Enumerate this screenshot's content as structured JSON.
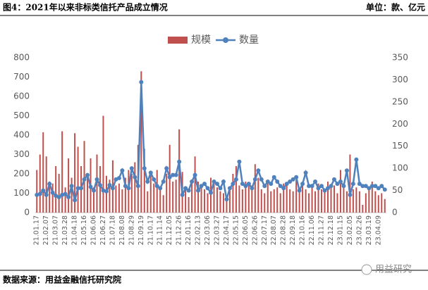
{
  "chart_data": {
    "type": "bar",
    "title": "图4：2021年以来非标类信托产品成立情况",
    "unit": "单位：款、亿元",
    "source": "数据来源：用益金融信托研究院",
    "categories": [
      "21.01.17",
      null,
      null,
      "21.02.07",
      null,
      null,
      "21.03.07",
      null,
      null,
      "21.03.28",
      null,
      null,
      "21.04.18",
      null,
      null,
      "21.05.16",
      null,
      null,
      "21.06.06",
      null,
      null,
      "21.06.27",
      null,
      null,
      "21.07.18",
      null,
      null,
      "21.08.08",
      null,
      null,
      "21.08.29",
      null,
      null,
      "21.09.19",
      null,
      null,
      "21.10.17",
      null,
      null,
      "21.11.14",
      null,
      null,
      "21.12.05",
      null,
      null,
      "21.12.26",
      null,
      null,
      "22.01.16",
      null,
      null,
      "22.02.13",
      null,
      null,
      "22.03.06",
      null,
      null,
      "22.03.27",
      null,
      null,
      "22.04.17",
      null,
      null,
      "22.05.15",
      null,
      null,
      "22.06.05",
      null,
      null,
      "22.06.26",
      null,
      null,
      "22.07.17",
      null,
      null,
      "22.08.07",
      null,
      null,
      "22.08.28",
      null,
      null,
      "22.09.18",
      null,
      null,
      "22.10.16",
      null,
      null,
      "22.11.06",
      null,
      null,
      "22.11.27",
      null,
      null,
      "22.12.18",
      null,
      null,
      "23.01.15",
      null,
      null,
      "23.02.05",
      null,
      null,
      "23.02.26",
      null,
      null,
      "23.03.19",
      null,
      null,
      "23.04.09",
      null,
      null
    ],
    "series": [
      {
        "name": "规模",
        "type": "bar",
        "color": "#c0504d",
        "axis": "y",
        "values": [
          220,
          300,
          415,
          290,
          160,
          150,
          240,
          200,
          420,
          130,
          280,
          180,
          410,
          340,
          240,
          370,
          200,
          280,
          130,
          300,
          240,
          500,
          190,
          170,
          270,
          140,
          150,
          120,
          180,
          220,
          200,
          260,
          350,
          730,
          330,
          110,
          200,
          150,
          220,
          130,
          90,
          200,
          350,
          160,
          170,
          430,
          210,
          120,
          80,
          170,
          290,
          160,
          130,
          120,
          100,
          180,
          160,
          130,
          110,
          100,
          80,
          120,
          200,
          240,
          140,
          120,
          160,
          150,
          140,
          250,
          180,
          120,
          100,
          170,
          110,
          120,
          130,
          100,
          150,
          140,
          120,
          110,
          170,
          120,
          140,
          120,
          100,
          130,
          110,
          150,
          120,
          110,
          160,
          130,
          140,
          100,
          220,
          150,
          110,
          300,
          120,
          130,
          110,
          40,
          100,
          120,
          160,
          110,
          90,
          100,
          70
        ]
      },
      {
        "name": "数量",
        "type": "line",
        "color": "#4f81bd",
        "axis": "y2",
        "values": [
          40,
          42,
          50,
          40,
          65,
          45,
          38,
          35,
          40,
          42,
          35,
          60,
          28,
          55,
          55,
          75,
          85,
          58,
          50,
          75,
          62,
          50,
          48,
          62,
          55,
          75,
          78,
          95,
          60,
          55,
          100,
          80,
          60,
          295,
          100,
          70,
          90,
          75,
          60,
          55,
          70,
          100,
          80,
          85,
          85,
          115,
          40,
          55,
          50,
          70,
          85,
          50,
          60,
          65,
          55,
          45,
          70,
          65,
          55,
          70,
          30,
          55,
          65,
          75,
          115,
          65,
          60,
          65,
          55,
          75,
          95,
          75,
          60,
          70,
          65,
          80,
          70,
          60,
          55,
          65,
          70,
          75,
          80,
          50,
          65,
          90,
          60,
          60,
          70,
          55,
          60,
          50,
          55,
          60,
          75,
          65,
          70,
          60,
          95,
          40,
          65,
          120,
          65,
          60,
          60,
          55,
          60,
          60,
          55,
          60,
          52
        ]
      }
    ],
    "ylim": [
      0,
      800
    ],
    "yticks": [
      0,
      100,
      200,
      300,
      400,
      500,
      600,
      700,
      800
    ],
    "y2lim": [
      0,
      350
    ],
    "y2ticks": [
      0,
      50,
      100,
      150,
      200,
      250,
      300,
      350
    ],
    "legend": "top"
  },
  "watermark": "用益研究"
}
